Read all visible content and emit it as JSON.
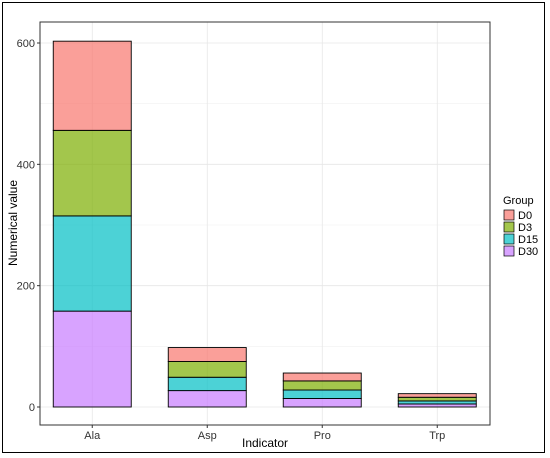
{
  "chart_data": {
    "type": "bar",
    "stacked": true,
    "categories": [
      "Ala",
      "Asp",
      "Pro",
      "Trp"
    ],
    "series": [
      {
        "name": "D30",
        "values": [
          158,
          27,
          14,
          5
        ],
        "color": "#C77CFF"
      },
      {
        "name": "D15",
        "values": [
          157,
          22,
          14,
          5
        ],
        "color": "#00BFC4"
      },
      {
        "name": "D3",
        "values": [
          141,
          26,
          15,
          6
        ],
        "color": "#7CAE00"
      },
      {
        "name": "D0",
        "values": [
          147,
          23,
          13,
          6
        ],
        "color": "#F8766D"
      }
    ],
    "xlabel": "Indicator",
    "ylabel": "Numerical value",
    "ylim": [
      0,
      640
    ],
    "yticks": [
      0,
      200,
      400,
      600
    ],
    "grid": true,
    "legend": {
      "title": "Group",
      "position": "right",
      "entries": [
        "D0",
        "D3",
        "D15",
        "D30"
      ]
    }
  }
}
